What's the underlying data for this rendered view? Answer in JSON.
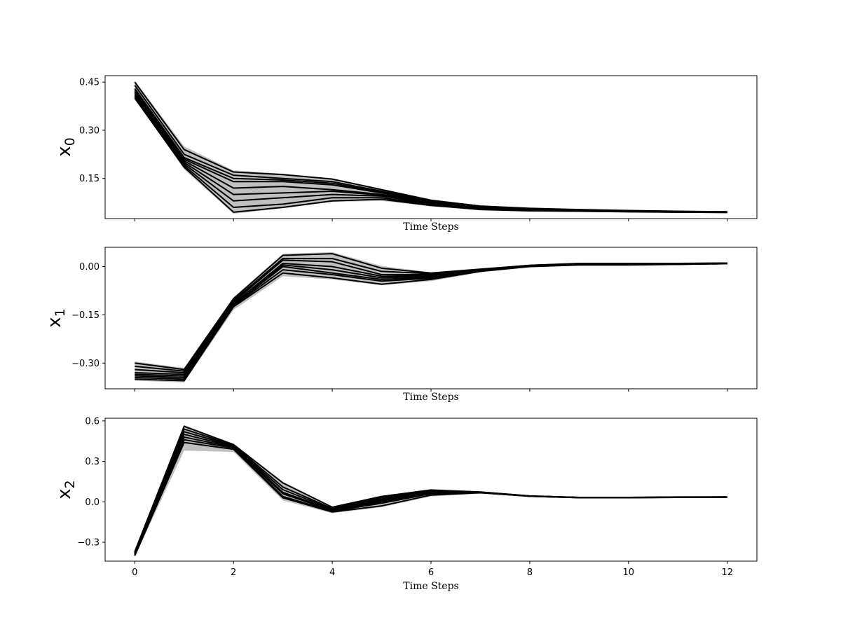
{
  "chart_data": [
    {
      "type": "line",
      "ylabel": "x",
      "ylabel_sub": "0",
      "xlabel": "Time Steps",
      "x": [
        0,
        1,
        2,
        3,
        4,
        5,
        6,
        7,
        8,
        9,
        10,
        11,
        12
      ],
      "xlim": [
        -0.6,
        12.6
      ],
      "ylim": [
        0.025,
        0.47
      ],
      "yticks": [
        0.15,
        0.3,
        0.45
      ],
      "ytick_labels": [
        "0.15",
        "0.30",
        "0.45"
      ],
      "xticks": [
        0,
        2,
        4,
        6,
        8,
        10,
        12
      ],
      "xtick_labels": [
        "",
        "",
        "",
        "",
        "",
        "",
        ""
      ],
      "band_color": "#c0c0c0",
      "line_color": "#000000",
      "band": {
        "upper": [
          0.455,
          0.25,
          0.175,
          0.165,
          0.15,
          0.118,
          0.085,
          0.066,
          0.058,
          0.055,
          0.051,
          0.049,
          0.047
        ],
        "lower": [
          0.4,
          0.178,
          0.04,
          0.057,
          0.077,
          0.08,
          0.063,
          0.052,
          0.048,
          0.047,
          0.046,
          0.045,
          0.044
        ]
      },
      "series": [
        {
          "values": [
            0.45,
            0.24,
            0.17,
            0.162,
            0.148,
            0.115,
            0.082,
            0.064,
            0.057,
            0.053,
            0.05,
            0.048,
            0.046
          ]
        },
        {
          "values": [
            0.44,
            0.225,
            0.16,
            0.15,
            0.14,
            0.11,
            0.08,
            0.062,
            0.056,
            0.052,
            0.049,
            0.047,
            0.046
          ]
        },
        {
          "values": [
            0.43,
            0.215,
            0.15,
            0.145,
            0.135,
            0.107,
            0.078,
            0.061,
            0.055,
            0.051,
            0.049,
            0.047,
            0.046
          ]
        },
        {
          "values": [
            0.425,
            0.21,
            0.14,
            0.14,
            0.13,
            0.105,
            0.077,
            0.06,
            0.054,
            0.051,
            0.048,
            0.046,
            0.045
          ]
        },
        {
          "values": [
            0.42,
            0.205,
            0.12,
            0.125,
            0.115,
            0.1,
            0.075,
            0.059,
            0.053,
            0.05,
            0.048,
            0.046,
            0.045
          ]
        },
        {
          "values": [
            0.415,
            0.2,
            0.1,
            0.105,
            0.11,
            0.098,
            0.073,
            0.058,
            0.052,
            0.05,
            0.048,
            0.046,
            0.045
          ]
        },
        {
          "values": [
            0.41,
            0.195,
            0.08,
            0.09,
            0.1,
            0.095,
            0.071,
            0.057,
            0.051,
            0.049,
            0.047,
            0.046,
            0.045
          ]
        },
        {
          "values": [
            0.405,
            0.19,
            0.06,
            0.07,
            0.09,
            0.09,
            0.068,
            0.055,
            0.05,
            0.048,
            0.047,
            0.045,
            0.044
          ]
        },
        {
          "values": [
            0.4,
            0.185,
            0.045,
            0.06,
            0.08,
            0.085,
            0.066,
            0.053,
            0.049,
            0.048,
            0.046,
            0.045,
            0.044
          ]
        }
      ]
    },
    {
      "type": "line",
      "ylabel": "x",
      "ylabel_sub": "1",
      "xlabel": "Time Steps",
      "x": [
        0,
        1,
        2,
        3,
        4,
        5,
        6,
        7,
        8,
        9,
        10,
        11,
        12
      ],
      "xlim": [
        -0.6,
        12.6
      ],
      "ylim": [
        -0.38,
        0.06
      ],
      "yticks": [
        -0.3,
        -0.15,
        0.0
      ],
      "ytick_labels": [
        "−0.30",
        "−0.15",
        "0.00"
      ],
      "xticks": [
        0,
        2,
        4,
        6,
        8,
        10,
        12
      ],
      "xtick_labels": [
        "",
        "",
        "",
        "",
        "",
        "",
        ""
      ],
      "band_color": "#c0c0c0",
      "line_color": "#000000",
      "band": {
        "upper": [
          -0.295,
          -0.315,
          -0.095,
          0.04,
          0.045,
          0.002,
          -0.018,
          -0.005,
          0.005,
          0.011,
          0.011,
          0.011,
          0.012
        ],
        "lower": [
          -0.355,
          -0.36,
          -0.135,
          -0.03,
          -0.04,
          -0.058,
          -0.045,
          -0.018,
          -0.002,
          0.004,
          0.004,
          0.006,
          0.008
        ]
      },
      "series": [
        {
          "values": [
            -0.3,
            -0.32,
            -0.1,
            0.035,
            0.04,
            -0.005,
            -0.02,
            -0.008,
            0.004,
            0.01,
            0.01,
            0.01,
            0.011
          ]
        },
        {
          "values": [
            -0.31,
            -0.325,
            -0.105,
            0.025,
            0.025,
            -0.015,
            -0.022,
            -0.009,
            0.004,
            0.009,
            0.009,
            0.009,
            0.011
          ]
        },
        {
          "values": [
            -0.32,
            -0.33,
            -0.11,
            0.02,
            0.015,
            -0.025,
            -0.025,
            -0.01,
            0.003,
            0.008,
            0.008,
            0.009,
            0.01
          ]
        },
        {
          "values": [
            -0.33,
            -0.335,
            -0.115,
            0.01,
            0.0,
            -0.03,
            -0.028,
            -0.011,
            0.003,
            0.008,
            0.008,
            0.008,
            0.01
          ]
        },
        {
          "values": [
            -0.335,
            -0.34,
            -0.118,
            0.005,
            -0.01,
            -0.035,
            -0.03,
            -0.012,
            0.002,
            0.007,
            0.007,
            0.008,
            0.01
          ]
        },
        {
          "values": [
            -0.34,
            -0.345,
            -0.12,
            0.0,
            -0.02,
            -0.04,
            -0.033,
            -0.013,
            0.002,
            0.006,
            0.006,
            0.008,
            0.009
          ]
        },
        {
          "values": [
            -0.345,
            -0.35,
            -0.122,
            -0.01,
            -0.025,
            -0.045,
            -0.036,
            -0.014,
            0.001,
            0.006,
            0.006,
            0.007,
            0.009
          ]
        },
        {
          "values": [
            -0.35,
            -0.355,
            -0.125,
            -0.02,
            -0.035,
            -0.055,
            -0.04,
            -0.015,
            0.0,
            0.005,
            0.005,
            0.007,
            0.009
          ]
        }
      ]
    },
    {
      "type": "line",
      "ylabel": "x",
      "ylabel_sub": "2",
      "xlabel": "Time Steps",
      "x": [
        0,
        1,
        2,
        3,
        4,
        5,
        6,
        7,
        8,
        9,
        10,
        11,
        12
      ],
      "xlim": [
        -0.6,
        12.6
      ],
      "ylim": [
        -0.44,
        0.62
      ],
      "yticks": [
        -0.3,
        0.0,
        0.3,
        0.6
      ],
      "ytick_labels": [
        "−0.3",
        "0.0",
        "0.3",
        "0.6"
      ],
      "xticks": [
        0,
        2,
        4,
        6,
        8,
        10,
        12
      ],
      "xtick_labels": [
        "0",
        "2",
        "4",
        "6",
        "8",
        "10",
        "12"
      ],
      "band_color": "#c0c0c0",
      "line_color": "#000000",
      "band": {
        "upper": [
          -0.36,
          0.57,
          0.43,
          0.15,
          -0.035,
          0.045,
          0.09,
          0.075,
          0.045,
          0.035,
          0.035,
          0.038,
          0.038
        ],
        "lower": [
          -0.41,
          0.38,
          0.37,
          0.01,
          -0.085,
          -0.04,
          0.04,
          0.06,
          0.04,
          0.03,
          0.03,
          0.032,
          0.033
        ]
      },
      "series": [
        {
          "values": [
            -0.37,
            0.56,
            0.425,
            0.14,
            -0.04,
            0.04,
            0.088,
            0.073,
            0.044,
            0.033,
            0.033,
            0.036,
            0.037
          ]
        },
        {
          "values": [
            -0.375,
            0.54,
            0.42,
            0.11,
            -0.05,
            0.03,
            0.085,
            0.072,
            0.043,
            0.033,
            0.033,
            0.035,
            0.036
          ]
        },
        {
          "values": [
            -0.38,
            0.52,
            0.415,
            0.09,
            -0.055,
            0.02,
            0.08,
            0.071,
            0.043,
            0.032,
            0.032,
            0.035,
            0.036
          ]
        },
        {
          "values": [
            -0.385,
            0.5,
            0.41,
            0.07,
            -0.06,
            0.01,
            0.075,
            0.07,
            0.042,
            0.032,
            0.032,
            0.034,
            0.035
          ]
        },
        {
          "values": [
            -0.39,
            0.48,
            0.405,
            0.06,
            -0.065,
            0.0,
            0.07,
            0.069,
            0.042,
            0.031,
            0.031,
            0.034,
            0.035
          ]
        },
        {
          "values": [
            -0.395,
            0.46,
            0.4,
            0.04,
            -0.07,
            -0.01,
            0.06,
            0.068,
            0.041,
            0.031,
            0.031,
            0.033,
            0.035
          ]
        },
        {
          "values": [
            -0.4,
            0.44,
            0.39,
            0.03,
            -0.075,
            -0.03,
            0.05,
            0.067,
            0.041,
            0.031,
            0.031,
            0.033,
            0.034
          ]
        }
      ]
    }
  ]
}
